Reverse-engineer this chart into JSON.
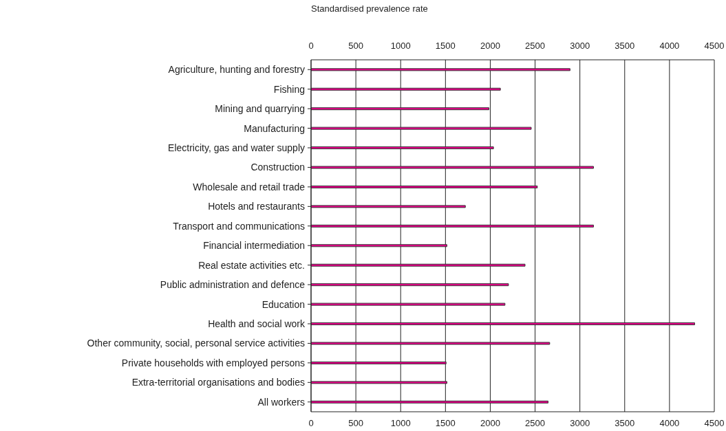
{
  "chart_data": {
    "type": "bar",
    "orientation": "horizontal",
    "x2label": "Standardised prevalence rate",
    "categories": [
      "Agriculture, hunting and forestry",
      "Fishing",
      "Mining and quarrying",
      "Manufacturing",
      "Electricity, gas and water supply",
      "Construction",
      "Wholesale and retail trade",
      "Hotels and restaurants",
      "Transport and communications",
      "Financial intermediation",
      "Real estate activities etc.",
      "Public administration and defence",
      "Education",
      "Health and social work",
      "Other community, social, personal service activities",
      "Private households with employed persons",
      "Extra-territorial organisations and bodies",
      "All workers"
    ],
    "values": [
      2890,
      2113,
      1985,
      2457,
      2036,
      3152,
      2525,
      1722,
      3152,
      1516,
      2388,
      2203,
      2164,
      4281,
      2663,
      1507,
      1516,
      2645
    ],
    "color": "#ec008c",
    "xlim": [
      0,
      4500
    ],
    "xticks": [
      0,
      500,
      1000,
      1500,
      2000,
      2500,
      3000,
      3500,
      4000,
      4500
    ],
    "x2lim": [
      0,
      4500
    ],
    "x2ticks": [
      0,
      500,
      1000,
      1500,
      2000,
      2500,
      3000,
      3500,
      4000,
      4500
    ],
    "grid": "x"
  }
}
